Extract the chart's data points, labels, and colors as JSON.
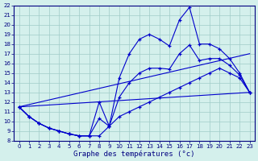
{
  "title": "Graphe des températures (°c)",
  "bg_color": "#d4f0ec",
  "grid_color": "#a0ccc8",
  "line_color": "#0000cc",
  "xlim": [
    -0.5,
    23.5
  ],
  "ylim": [
    8,
    22
  ],
  "xticks": [
    0,
    1,
    2,
    3,
    4,
    5,
    6,
    7,
    8,
    9,
    10,
    11,
    12,
    13,
    14,
    15,
    16,
    17,
    18,
    19,
    20,
    21,
    22,
    23
  ],
  "yticks": [
    8,
    9,
    10,
    11,
    12,
    13,
    14,
    15,
    16,
    17,
    18,
    19,
    20,
    21,
    22
  ],
  "hours": [
    0,
    1,
    2,
    3,
    4,
    5,
    6,
    7,
    8,
    9,
    10,
    11,
    12,
    13,
    14,
    15,
    16,
    17,
    18,
    19,
    20,
    21,
    22,
    23
  ],
  "max_temps": [
    11.5,
    10.5,
    9.8,
    9.3,
    9.0,
    8.7,
    8.5,
    8.5,
    12.0,
    9.5,
    14.5,
    17.0,
    18.5,
    19.0,
    18.5,
    17.8,
    20.5,
    21.8,
    18.0,
    18.0,
    17.5,
    16.5,
    15.0,
    13.0
  ],
  "min_temps": [
    11.5,
    10.5,
    9.8,
    9.3,
    9.0,
    8.7,
    8.5,
    8.5,
    8.5,
    9.5,
    10.5,
    11.0,
    11.5,
    12.0,
    12.5,
    13.0,
    13.5,
    14.0,
    14.5,
    15.0,
    15.5,
    15.0,
    14.5,
    13.0
  ],
  "avg_temps": [
    11.5,
    10.5,
    9.8,
    9.3,
    9.0,
    8.7,
    8.5,
    8.5,
    10.3,
    9.5,
    12.5,
    14.0,
    15.0,
    15.5,
    15.5,
    15.4,
    17.0,
    17.9,
    16.3,
    16.5,
    16.5,
    15.8,
    14.8,
    13.0
  ]
}
